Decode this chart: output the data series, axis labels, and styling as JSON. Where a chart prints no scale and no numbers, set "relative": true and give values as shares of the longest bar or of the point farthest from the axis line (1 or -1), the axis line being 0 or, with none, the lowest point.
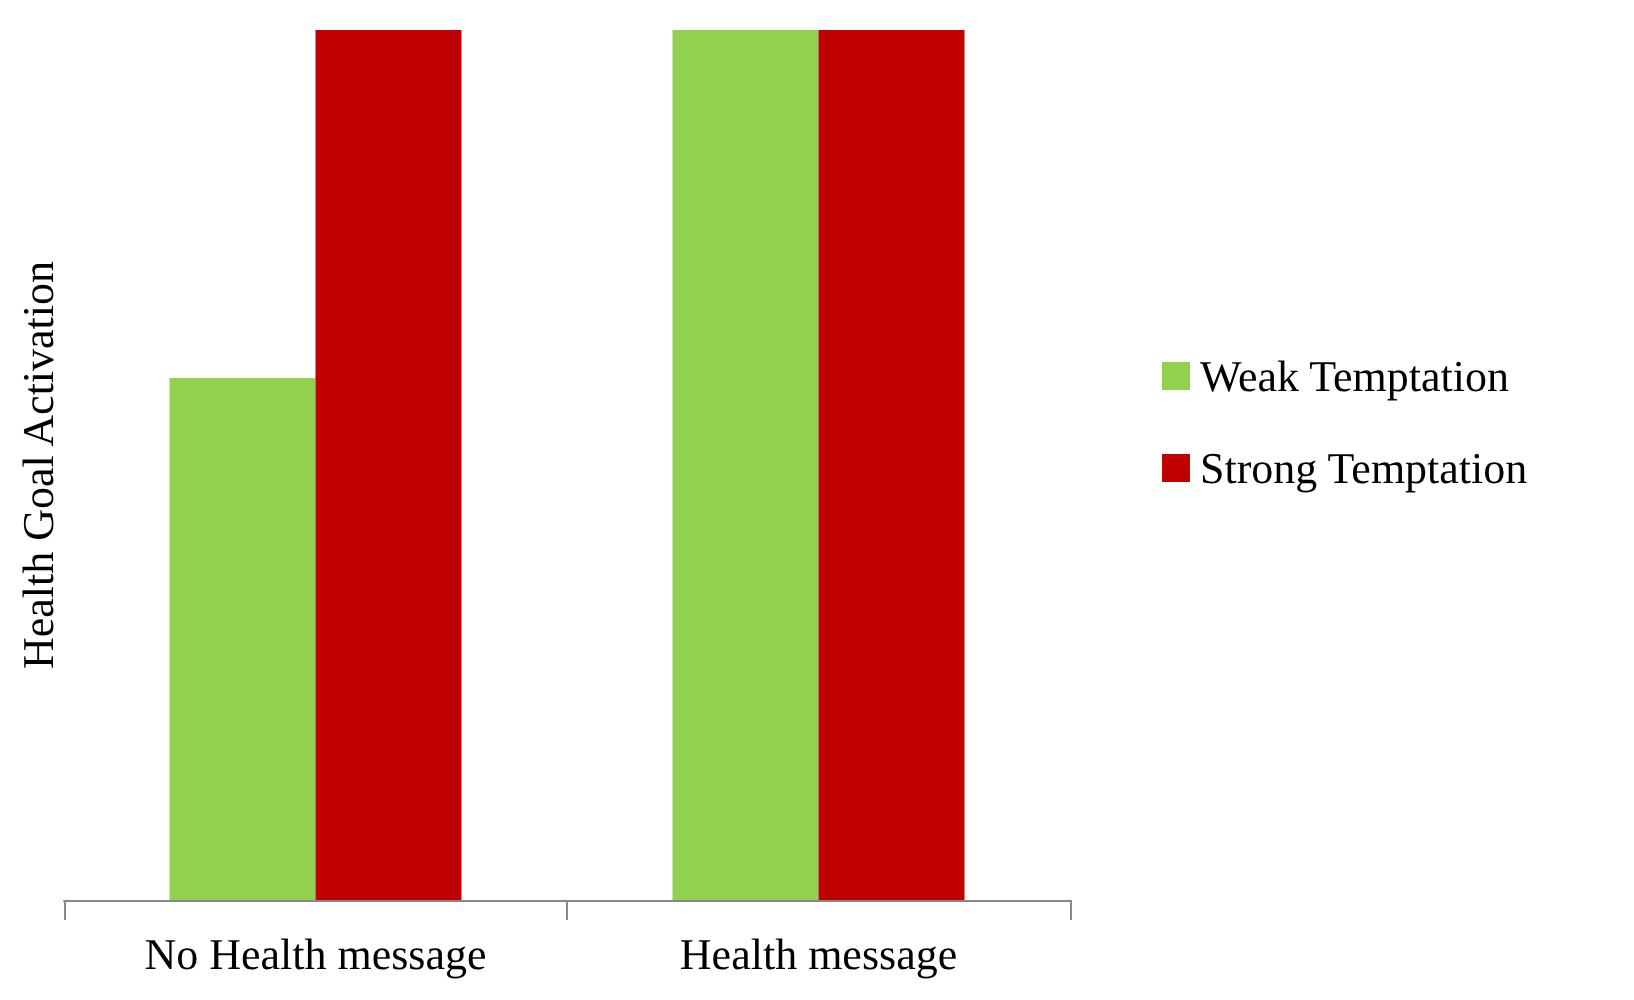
{
  "chart_data": {
    "type": "bar",
    "relative": true,
    "ylabel": "Health Goal Activation",
    "categories": [
      "No Health message",
      "Health message"
    ],
    "series": [
      {
        "name": "Weak Temptation",
        "color": "#92d050",
        "values": [
          0.6,
          1
        ]
      },
      {
        "name": "Strong Temptation",
        "color": "#c00000",
        "values": [
          1,
          1
        ]
      }
    ],
    "legend": "right",
    "grid": false
  }
}
